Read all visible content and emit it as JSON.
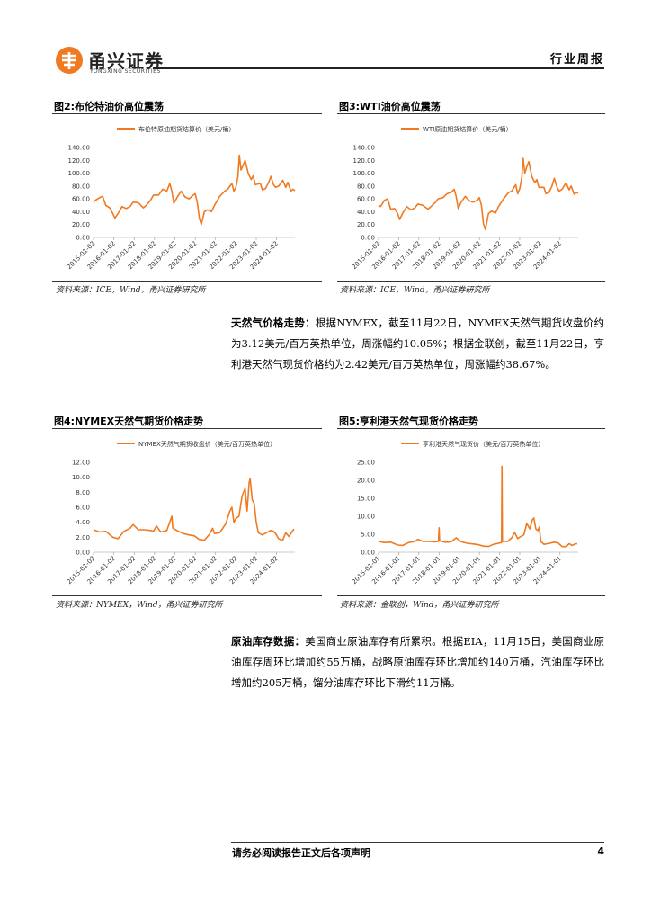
{
  "header": {
    "brand_name": "甬兴证券",
    "brand_sub": "YONGXING SECURITIES",
    "report_type": "行业周报"
  },
  "figures": [
    {
      "title": "图2:布伦特油价高位震荡",
      "source": "资料来源：ICE，Wind，甬兴证券研究所",
      "chart_data": {
        "type": "line",
        "legend": "布伦特原油期货结算价（美元/桶）",
        "color": "#F07A22",
        "ylim": [
          0,
          140
        ],
        "yticks": [
          "0.00",
          "20.00",
          "40.00",
          "60.00",
          "80.00",
          "100.00",
          "120.00",
          "140.00"
        ],
        "xticks": [
          "2015-01-02",
          "2016-01-02",
          "2017-01-02",
          "2018-01-02",
          "2019-01-02",
          "2020-01-02",
          "2021-01-02",
          "2022-01-02",
          "2023-01-02",
          "2024-01-02"
        ],
        "x_range": [
          2015.0,
          2024.9
        ],
        "points": [
          [
            2015.0,
            55
          ],
          [
            2015.1,
            58
          ],
          [
            2015.3,
            62
          ],
          [
            2015.45,
            64
          ],
          [
            2015.6,
            50
          ],
          [
            2015.8,
            46
          ],
          [
            2015.95,
            37
          ],
          [
            2016.05,
            30
          ],
          [
            2016.2,
            37
          ],
          [
            2016.4,
            48
          ],
          [
            2016.6,
            45
          ],
          [
            2016.8,
            48
          ],
          [
            2016.95,
            55
          ],
          [
            2017.2,
            54
          ],
          [
            2017.45,
            46
          ],
          [
            2017.6,
            50
          ],
          [
            2017.8,
            58
          ],
          [
            2017.95,
            66
          ],
          [
            2018.2,
            66
          ],
          [
            2018.4,
            75
          ],
          [
            2018.6,
            72
          ],
          [
            2018.75,
            84
          ],
          [
            2018.85,
            72
          ],
          [
            2018.95,
            53
          ],
          [
            2019.1,
            62
          ],
          [
            2019.3,
            72
          ],
          [
            2019.5,
            63
          ],
          [
            2019.7,
            60
          ],
          [
            2019.9,
            66
          ],
          [
            2020.0,
            68
          ],
          [
            2020.1,
            55
          ],
          [
            2020.2,
            30
          ],
          [
            2020.3,
            20
          ],
          [
            2020.45,
            40
          ],
          [
            2020.6,
            43
          ],
          [
            2020.8,
            40
          ],
          [
            2020.95,
            50
          ],
          [
            2021.2,
            64
          ],
          [
            2021.45,
            72
          ],
          [
            2021.6,
            75
          ],
          [
            2021.8,
            84
          ],
          [
            2021.9,
            72
          ],
          [
            2022.0,
            78
          ],
          [
            2022.1,
            95
          ],
          [
            2022.17,
            128
          ],
          [
            2022.25,
            105
          ],
          [
            2022.35,
            112
          ],
          [
            2022.45,
            120
          ],
          [
            2022.6,
            100
          ],
          [
            2022.75,
            90
          ],
          [
            2022.85,
            96
          ],
          [
            2022.95,
            82
          ],
          [
            2023.2,
            84
          ],
          [
            2023.3,
            74
          ],
          [
            2023.45,
            76
          ],
          [
            2023.6,
            85
          ],
          [
            2023.72,
            95
          ],
          [
            2023.85,
            82
          ],
          [
            2023.95,
            78
          ],
          [
            2024.1,
            80
          ],
          [
            2024.3,
            89
          ],
          [
            2024.45,
            78
          ],
          [
            2024.55,
            86
          ],
          [
            2024.7,
            72
          ],
          [
            2024.8,
            75
          ],
          [
            2024.9,
            73
          ]
        ]
      }
    },
    {
      "title": "图3:WTI油价高位震荡",
      "source": "资料来源：ICE，Wind，甬兴证券研究所",
      "chart_data": {
        "type": "line",
        "legend": "WTI原油期货结算价（美元/桶）",
        "color": "#F07A22",
        "ylim": [
          0,
          140
        ],
        "yticks": [
          "0.00",
          "20.00",
          "40.00",
          "60.00",
          "80.00",
          "100.00",
          "120.00",
          "140.00"
        ],
        "xticks": [
          "2015-01-02",
          "2016-01-02",
          "2017-01-02",
          "2018-01-02",
          "2019-01-02",
          "2020-01-02",
          "2021-01-02",
          "2022-01-02",
          "2023-01-02",
          "2024-01-02"
        ],
        "x_range": [
          2015.0,
          2024.9
        ],
        "points": [
          [
            2015.0,
            50
          ],
          [
            2015.1,
            48
          ],
          [
            2015.3,
            58
          ],
          [
            2015.45,
            60
          ],
          [
            2015.6,
            44
          ],
          [
            2015.8,
            45
          ],
          [
            2015.95,
            37
          ],
          [
            2016.05,
            28
          ],
          [
            2016.2,
            38
          ],
          [
            2016.4,
            48
          ],
          [
            2016.6,
            43
          ],
          [
            2016.8,
            46
          ],
          [
            2016.95,
            52
          ],
          [
            2017.2,
            50
          ],
          [
            2017.45,
            44
          ],
          [
            2017.6,
            48
          ],
          [
            2017.8,
            54
          ],
          [
            2017.95,
            60
          ],
          [
            2018.2,
            62
          ],
          [
            2018.4,
            68
          ],
          [
            2018.6,
            70
          ],
          [
            2018.75,
            75
          ],
          [
            2018.85,
            64
          ],
          [
            2018.95,
            45
          ],
          [
            2019.1,
            55
          ],
          [
            2019.3,
            64
          ],
          [
            2019.5,
            57
          ],
          [
            2019.7,
            55
          ],
          [
            2019.9,
            58
          ],
          [
            2020.0,
            62
          ],
          [
            2020.1,
            50
          ],
          [
            2020.2,
            22
          ],
          [
            2020.3,
            12
          ],
          [
            2020.45,
            37
          ],
          [
            2020.6,
            41
          ],
          [
            2020.8,
            38
          ],
          [
            2020.95,
            48
          ],
          [
            2021.2,
            60
          ],
          [
            2021.45,
            70
          ],
          [
            2021.6,
            72
          ],
          [
            2021.8,
            82
          ],
          [
            2021.9,
            68
          ],
          [
            2022.0,
            76
          ],
          [
            2022.1,
            92
          ],
          [
            2022.17,
            123
          ],
          [
            2022.25,
            100
          ],
          [
            2022.35,
            110
          ],
          [
            2022.45,
            118
          ],
          [
            2022.6,
            95
          ],
          [
            2022.75,
            85
          ],
          [
            2022.85,
            90
          ],
          [
            2022.95,
            78
          ],
          [
            2023.2,
            78
          ],
          [
            2023.3,
            68
          ],
          [
            2023.45,
            70
          ],
          [
            2023.6,
            80
          ],
          [
            2023.72,
            92
          ],
          [
            2023.85,
            78
          ],
          [
            2023.95,
            72
          ],
          [
            2024.1,
            75
          ],
          [
            2024.3,
            85
          ],
          [
            2024.45,
            74
          ],
          [
            2024.55,
            80
          ],
          [
            2024.7,
            67
          ],
          [
            2024.8,
            70
          ],
          [
            2024.9,
            69
          ]
        ]
      }
    },
    {
      "title": "图4:NYMEX天然气期货价格走势",
      "source": "资料来源：NYMEX，Wind，甬兴证券研究所",
      "chart_data": {
        "type": "line",
        "legend": "NYMEX天然气期货收盘价（美元/百万英热单位）",
        "color": "#F07A22",
        "ylim": [
          0,
          12
        ],
        "yticks": [
          "0.00",
          "2.00",
          "4.00",
          "6.00",
          "8.00",
          "10.00",
          "12.00"
        ],
        "xticks": [
          "2015-01-02",
          "2016-01-02",
          "2017-01-02",
          "2018-01-02",
          "2019-01-02",
          "2020-01-02",
          "2021-01-02",
          "2022-01-02",
          "2023-01-02",
          "2024-01-02"
        ],
        "x_range": [
          2015.0,
          2024.9
        ],
        "points": [
          [
            2015.0,
            3.0
          ],
          [
            2015.3,
            2.7
          ],
          [
            2015.6,
            2.8
          ],
          [
            2015.95,
            2.0
          ],
          [
            2016.2,
            1.8
          ],
          [
            2016.5,
            2.8
          ],
          [
            2016.8,
            3.2
          ],
          [
            2016.95,
            3.7
          ],
          [
            2017.2,
            3.0
          ],
          [
            2017.5,
            3.0
          ],
          [
            2017.8,
            2.9
          ],
          [
            2017.95,
            2.8
          ],
          [
            2018.1,
            3.5
          ],
          [
            2018.3,
            2.7
          ],
          [
            2018.6,
            2.9
          ],
          [
            2018.85,
            4.8
          ],
          [
            2018.9,
            3.2
          ],
          [
            2019.1,
            2.9
          ],
          [
            2019.4,
            2.5
          ],
          [
            2019.7,
            2.3
          ],
          [
            2019.95,
            2.2
          ],
          [
            2020.2,
            1.7
          ],
          [
            2020.45,
            1.6
          ],
          [
            2020.7,
            2.4
          ],
          [
            2020.85,
            3.2
          ],
          [
            2020.95,
            2.5
          ],
          [
            2021.2,
            2.6
          ],
          [
            2021.5,
            3.8
          ],
          [
            2021.7,
            5.5
          ],
          [
            2021.8,
            6.0
          ],
          [
            2021.9,
            4.0
          ],
          [
            2022.0,
            4.5
          ],
          [
            2022.15,
            4.8
          ],
          [
            2022.3,
            7.5
          ],
          [
            2022.45,
            8.5
          ],
          [
            2022.55,
            5.5
          ],
          [
            2022.65,
            9.3
          ],
          [
            2022.7,
            9.8
          ],
          [
            2022.8,
            7.0
          ],
          [
            2022.9,
            6.5
          ],
          [
            2023.0,
            4.0
          ],
          [
            2023.1,
            2.6
          ],
          [
            2023.3,
            2.3
          ],
          [
            2023.5,
            2.6
          ],
          [
            2023.7,
            2.9
          ],
          [
            2023.85,
            2.8
          ],
          [
            2023.95,
            2.5
          ],
          [
            2024.1,
            1.8
          ],
          [
            2024.3,
            1.6
          ],
          [
            2024.45,
            2.6
          ],
          [
            2024.6,
            2.1
          ],
          [
            2024.75,
            2.7
          ],
          [
            2024.85,
            3.1
          ]
        ]
      }
    },
    {
      "title": "图5:亨利港天然气现货价格走势",
      "source": "资料来源：金联创，Wind，甬兴证券研究所",
      "chart_data": {
        "type": "line",
        "legend": "亨利港天然气现货价（美元/百万英热单位）",
        "color": "#F07A22",
        "ylim": [
          0,
          25
        ],
        "yticks": [
          "0.00",
          "5.00",
          "10.00",
          "15.00",
          "20.00",
          "25.00"
        ],
        "xticks": [
          "2015-01-01",
          "2016-01-01",
          "2017-01-01",
          "2018-01-01",
          "2019-01-01",
          "2020-01-01",
          "2021-01-01",
          "2022-01-01",
          "2023-01-01",
          "2024-01-01"
        ],
        "x_range": [
          2015.0,
          2024.9
        ],
        "points": [
          [
            2015.0,
            3.0
          ],
          [
            2015.3,
            2.7
          ],
          [
            2015.6,
            2.8
          ],
          [
            2015.95,
            2.0
          ],
          [
            2016.2,
            1.9
          ],
          [
            2016.5,
            2.7
          ],
          [
            2016.8,
            3.0
          ],
          [
            2016.95,
            3.6
          ],
          [
            2017.2,
            3.0
          ],
          [
            2017.5,
            3.0
          ],
          [
            2017.8,
            2.9
          ],
          [
            2017.97,
            3.0
          ],
          [
            2018.0,
            6.8
          ],
          [
            2018.03,
            3.2
          ],
          [
            2018.3,
            2.8
          ],
          [
            2018.6,
            2.9
          ],
          [
            2018.85,
            4.0
          ],
          [
            2019.1,
            2.9
          ],
          [
            2019.4,
            2.5
          ],
          [
            2019.7,
            2.3
          ],
          [
            2019.95,
            2.1
          ],
          [
            2020.2,
            1.7
          ],
          [
            2020.45,
            1.6
          ],
          [
            2020.7,
            2.2
          ],
          [
            2020.95,
            2.5
          ],
          [
            2021.1,
            2.7
          ],
          [
            2021.12,
            23.9
          ],
          [
            2021.14,
            3.0
          ],
          [
            2021.4,
            3.0
          ],
          [
            2021.6,
            4.0
          ],
          [
            2021.75,
            5.5
          ],
          [
            2021.9,
            3.8
          ],
          [
            2022.0,
            4.2
          ],
          [
            2022.2,
            4.8
          ],
          [
            2022.35,
            8.0
          ],
          [
            2022.5,
            6.5
          ],
          [
            2022.62,
            9.0
          ],
          [
            2022.7,
            9.5
          ],
          [
            2022.8,
            6.5
          ],
          [
            2022.9,
            6.0
          ],
          [
            2022.97,
            7.0
          ],
          [
            2023.05,
            3.0
          ],
          [
            2023.2,
            2.2
          ],
          [
            2023.5,
            2.5
          ],
          [
            2023.7,
            2.8
          ],
          [
            2023.9,
            2.6
          ],
          [
            2024.1,
            1.6
          ],
          [
            2024.3,
            1.5
          ],
          [
            2024.45,
            2.4
          ],
          [
            2024.6,
            1.9
          ],
          [
            2024.75,
            2.3
          ],
          [
            2024.85,
            2.4
          ]
        ]
      }
    }
  ],
  "paragraphs": {
    "gas": {
      "lead": "天然气价格走势：",
      "body": "根据NYMEX，截至11月22日，NYMEX天然气期货收盘价约为3.12美元/百万英热单位，周涨幅约10.05%；根据金联创，截至11月22日，亨利港天然气现货价格约为2.42美元/百万英热单位，周涨幅约38.67%。"
    },
    "crude": {
      "lead": "原油库存数据：",
      "body": "美国商业原油库存有所累积。根据EIA，11月15日，美国商业原油库存周环比增加约55万桶，战略原油库存环比增加约140万桶，汽油库存环比增加约205万桶，馏分油库存环比下滑约11万桶。"
    }
  },
  "footer": {
    "disclaimer": "请务必阅读报告正文后各项声明",
    "page_number": "4"
  }
}
